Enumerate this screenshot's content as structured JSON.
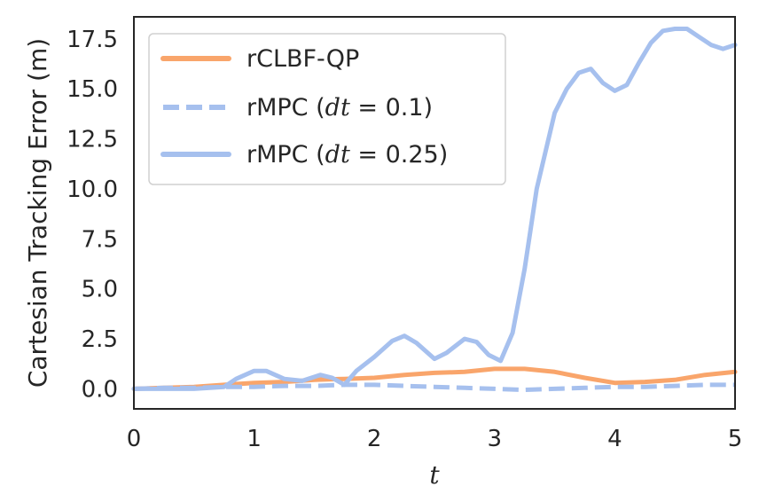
{
  "chart_data": {
    "type": "line",
    "xlabel": "t",
    "ylabel": "Cartesian Tracking Error (m)",
    "xlim": [
      0,
      5
    ],
    "ylim": [
      -1.0,
      18.6
    ],
    "x_ticks": [
      "0",
      "1",
      "2",
      "3",
      "4",
      "5"
    ],
    "y_ticks": [
      "0.0",
      "2.5",
      "5.0",
      "7.5",
      "10.0",
      "12.5",
      "15.0",
      "17.5"
    ],
    "grid": false,
    "legend_position": "top-left",
    "series": [
      {
        "name": "rCLBF-QP",
        "color": "#f9a56b",
        "dash": "solid",
        "x": [
          0,
          0.25,
          0.5,
          0.75,
          1.0,
          1.25,
          1.5,
          1.75,
          2.0,
          2.25,
          2.5,
          2.75,
          3.0,
          3.25,
          3.5,
          3.75,
          4.0,
          4.25,
          4.5,
          4.75,
          5.0
        ],
        "y": [
          0.0,
          0.05,
          0.1,
          0.2,
          0.3,
          0.35,
          0.45,
          0.5,
          0.55,
          0.7,
          0.8,
          0.85,
          1.0,
          1.0,
          0.85,
          0.55,
          0.3,
          0.35,
          0.45,
          0.7,
          0.85
        ]
      },
      {
        "name": "rMPC (dt = 0.1)",
        "color": "#a6c0ee",
        "dash": "dashed",
        "x": [
          0,
          0.25,
          0.5,
          0.75,
          1.0,
          1.25,
          1.5,
          1.75,
          2.0,
          2.25,
          2.5,
          2.75,
          3.0,
          3.25,
          3.5,
          3.75,
          4.0,
          4.25,
          4.5,
          4.75,
          5.0
        ],
        "y": [
          0.0,
          0.05,
          0.05,
          0.1,
          0.1,
          0.15,
          0.15,
          0.2,
          0.2,
          0.15,
          0.1,
          0.05,
          0.0,
          -0.05,
          0.0,
          0.05,
          0.1,
          0.1,
          0.15,
          0.2,
          0.2
        ]
      },
      {
        "name": "rMPC (dt = 0.25)",
        "color": "#a6c0ee",
        "dash": "solid",
        "x": [
          0,
          0.25,
          0.5,
          0.75,
          0.85,
          1.0,
          1.1,
          1.25,
          1.4,
          1.55,
          1.65,
          1.75,
          1.85,
          2.0,
          2.15,
          2.25,
          2.35,
          2.5,
          2.6,
          2.75,
          2.85,
          2.95,
          3.05,
          3.15,
          3.25,
          3.35,
          3.5,
          3.6,
          3.7,
          3.8,
          3.9,
          4.0,
          4.1,
          4.2,
          4.3,
          4.4,
          4.5,
          4.6,
          4.7,
          4.8,
          4.9,
          5.0
        ],
        "y": [
          0.0,
          0.0,
          0.0,
          0.1,
          0.5,
          0.9,
          0.9,
          0.5,
          0.4,
          0.7,
          0.55,
          0.2,
          0.9,
          1.6,
          2.4,
          2.65,
          2.3,
          1.5,
          1.8,
          2.5,
          2.35,
          1.7,
          1.4,
          2.8,
          6.0,
          10.0,
          13.8,
          15.0,
          15.8,
          16.0,
          15.3,
          14.9,
          15.2,
          16.3,
          17.3,
          17.9,
          18.0,
          18.0,
          17.6,
          17.2,
          17.0,
          17.2
        ]
      }
    ],
    "legend": [
      {
        "label": "rCLBF-QP",
        "pre": "",
        "italic": "",
        "post": ""
      },
      {
        "label": "rMPC (dt = 0.1)",
        "pre": "rMPC (",
        "italic": "dt",
        "post": " = 0.1)"
      },
      {
        "label": "rMPC (dt = 0.25)",
        "pre": "rMPC (",
        "italic": "dt",
        "post": " = 0.25)"
      }
    ]
  }
}
